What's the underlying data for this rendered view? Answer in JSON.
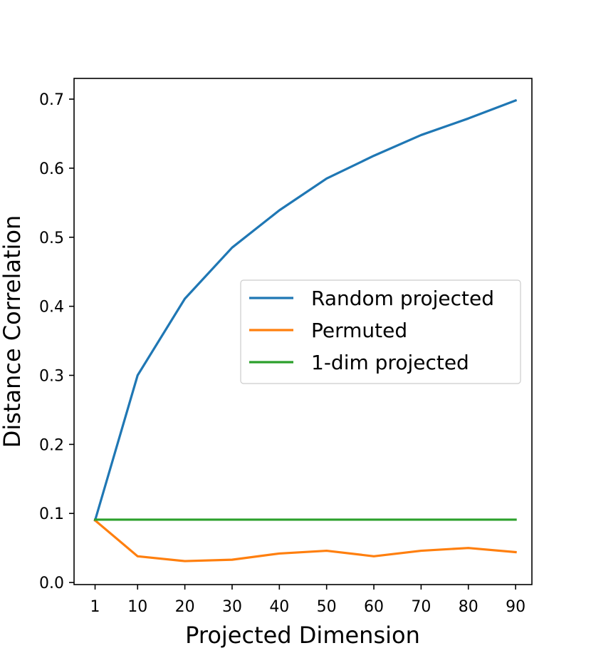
{
  "chart_data": {
    "type": "line",
    "title": "",
    "xlabel": "Projected Dimension",
    "ylabel": "Distance Correlation",
    "x": [
      1,
      10,
      20,
      30,
      40,
      50,
      60,
      70,
      80,
      90
    ],
    "xticks": [
      1,
      10,
      20,
      30,
      40,
      50,
      60,
      70,
      80,
      90
    ],
    "yticks": [
      0.0,
      0.1,
      0.2,
      0.3,
      0.4,
      0.5,
      0.6,
      0.7
    ],
    "ytick_labels": [
      "0.0",
      "0.1",
      "0.2",
      "0.3",
      "0.4",
      "0.5",
      "0.6",
      "0.7"
    ],
    "xlim": [
      -3.45,
      93.45
    ],
    "ylim": [
      -0.003,
      0.73
    ],
    "grid": false,
    "legend_position": "center-right",
    "series": [
      {
        "name": "Random projected",
        "color": "#1f77b4",
        "values": [
          0.09,
          0.3,
          0.411,
          0.485,
          0.539,
          0.585,
          0.618,
          0.648,
          0.672,
          0.698
        ]
      },
      {
        "name": "Permuted",
        "color": "#ff7f0e",
        "values": [
          0.09,
          0.038,
          0.031,
          0.033,
          0.042,
          0.046,
          0.038,
          0.046,
          0.05,
          0.044
        ]
      },
      {
        "name": "1-dim projected",
        "color": "#2ca02c",
        "values": [
          0.091,
          0.091,
          0.091,
          0.091,
          0.091,
          0.091,
          0.091,
          0.091,
          0.091,
          0.091
        ]
      }
    ]
  }
}
